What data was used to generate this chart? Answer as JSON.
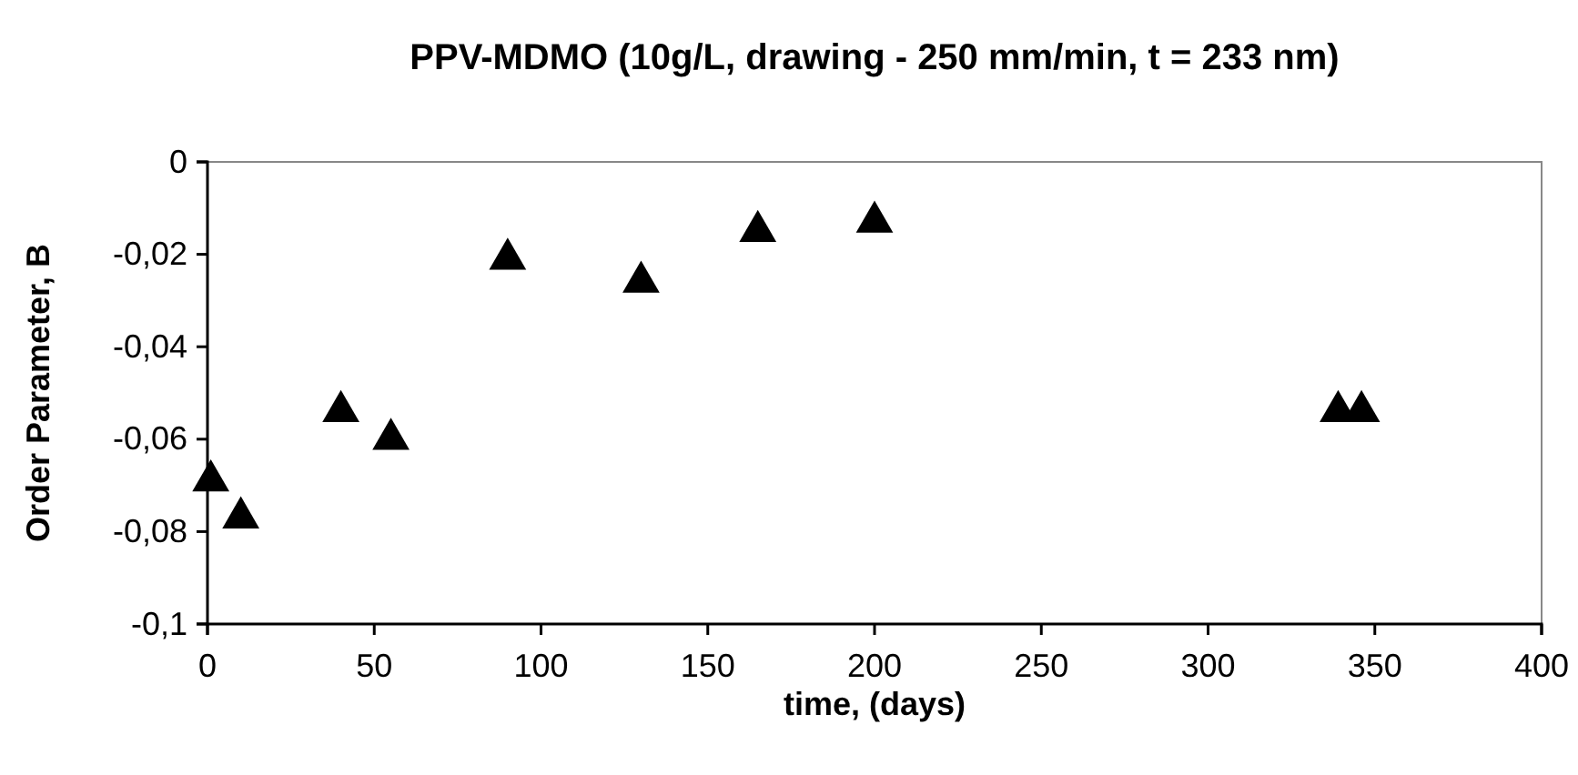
{
  "chart_data": {
    "type": "scatter",
    "title": "PPV-MDMO (10g/L, drawing - 250 mm/min, t = 233 nm)",
    "xlabel": "time, (days)",
    "ylabel": "Order Parameter, B",
    "x": [
      1,
      10,
      40,
      55,
      90,
      130,
      165,
      200,
      339,
      346
    ],
    "series": [
      {
        "color": "#000000",
        "values": [
          -0.069,
          -0.077,
          -0.054,
          -0.06,
          -0.021,
          -0.026,
          -0.015,
          -0.013,
          -0.054,
          -0.054
        ]
      }
    ],
    "xlim": [
      0,
      400
    ],
    "xticks": [
      0,
      50,
      100,
      150,
      200,
      250,
      300,
      350,
      400
    ],
    "ylim": [
      -0.1,
      0
    ],
    "yticks": [
      {
        "value": -0.1,
        "label": "-0,1"
      },
      {
        "value": -0.08,
        "label": "-0,08"
      },
      {
        "value": -0.06,
        "label": "-0,06"
      },
      {
        "value": -0.04,
        "label": "-0,04"
      },
      {
        "value": -0.02,
        "label": "-0,02"
      },
      0
    ],
    "marker": "triangle",
    "grid": false
  }
}
